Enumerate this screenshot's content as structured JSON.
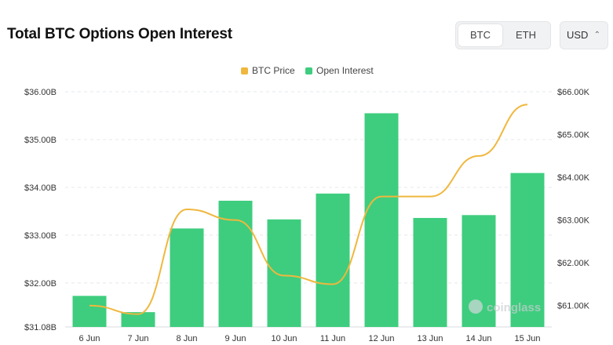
{
  "header": {
    "title": "Total BTC Options Open Interest",
    "asset_tabs": [
      {
        "label": "BTC",
        "active": true
      },
      {
        "label": "ETH",
        "active": false
      }
    ],
    "currency": "USD"
  },
  "watermark": "coinglass",
  "chart_data": {
    "type": "bar",
    "title": "Total BTC Options Open Interest",
    "categories": [
      "6 Jun",
      "7 Jun",
      "8 Jun",
      "9 Jun",
      "10 Jun",
      "11 Jun",
      "12 Jun",
      "13 Jun",
      "14 Jun",
      "15 Jun"
    ],
    "series": [
      {
        "name": "Open Interest",
        "type": "bar",
        "axis": "left",
        "color": "#3ecd7e",
        "values": [
          31.73,
          31.39,
          33.14,
          33.72,
          33.33,
          33.87,
          35.55,
          33.36,
          33.42,
          34.3
        ]
      },
      {
        "name": "BTC Price",
        "type": "line",
        "axis": "right",
        "color": "#f0b73e",
        "values": [
          61000,
          60800,
          63250,
          63000,
          61700,
          61500,
          63550,
          63550,
          64500,
          65700
        ]
      }
    ],
    "y_left": {
      "ticks": [
        "$36.00B",
        "$35.00B",
        "$34.00B",
        "$33.00B",
        "$32.00B",
        "$31.08B"
      ],
      "min": 31.08,
      "max": 36.0
    },
    "y_right": {
      "ticks": [
        "$66.00K",
        "$65.00K",
        "$64.00K",
        "$63.00K",
        "$62.00K",
        "$61.00K"
      ],
      "min": 60500,
      "max": 66000
    },
    "legend": [
      "BTC Price",
      "Open Interest"
    ],
    "legend_position": "top-center",
    "grid": true
  }
}
